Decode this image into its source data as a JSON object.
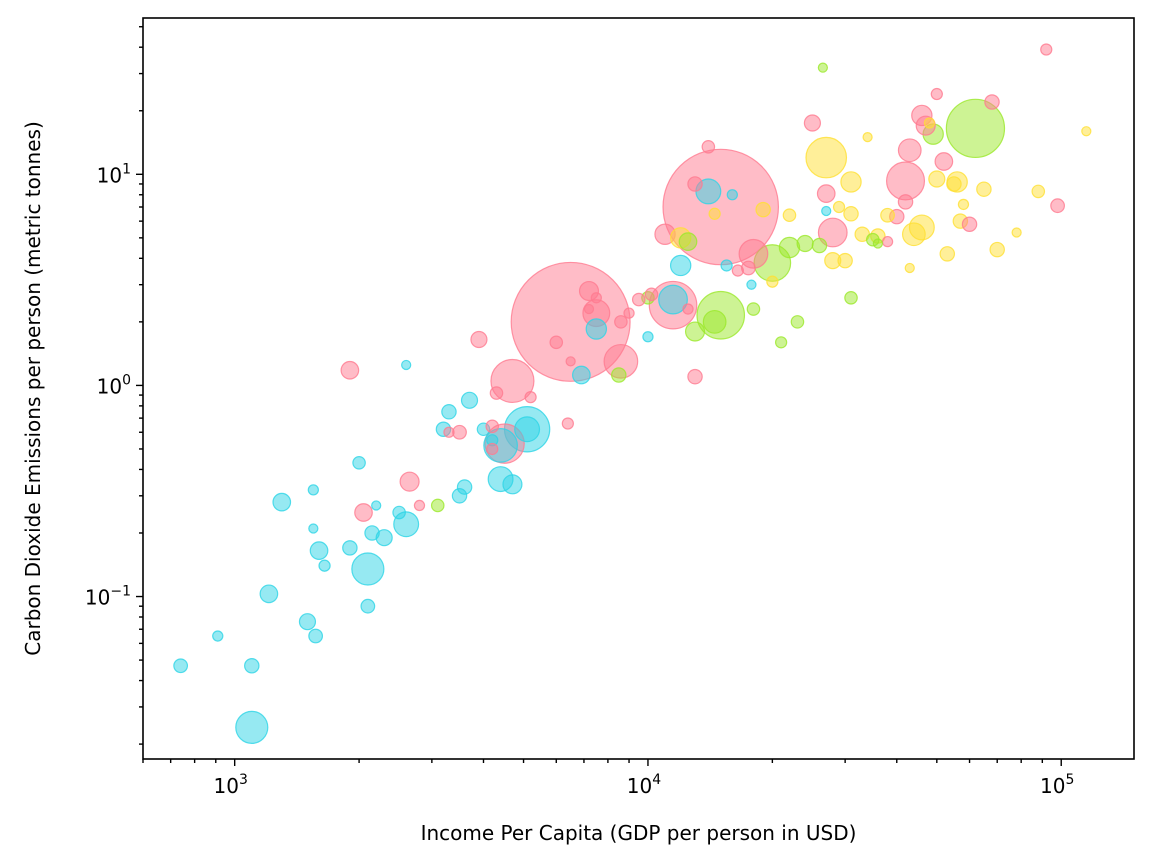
{
  "chart_data": {
    "type": "scatter",
    "title": "",
    "xlabel": "Income Per Capita (GDP per person in USD)",
    "ylabel": "Carbon Dioxide Emissions per person (metric tonnes)",
    "xscale": "log",
    "yscale": "log",
    "xlim": [
      600,
      150000
    ],
    "ylim": [
      0.017,
      55
    ],
    "grid": false,
    "legend": "none",
    "x_ticks": [
      {
        "value": 1000,
        "base": "10",
        "exp": "3"
      },
      {
        "value": 10000,
        "base": "10",
        "exp": "4"
      },
      {
        "value": 100000,
        "base": "10",
        "exp": "5"
      }
    ],
    "y_ticks": [
      {
        "value": 0.1,
        "base": "10",
        "exp": "−1"
      },
      {
        "value": 1,
        "base": "10",
        "exp": "0"
      },
      {
        "value": 10,
        "base": "10",
        "exp": "1"
      }
    ],
    "groups": [
      {
        "color": "#2dd4e6"
      },
      {
        "color": "#ff7a90"
      },
      {
        "color": "#9be82a"
      },
      {
        "color": "#ffe033"
      }
    ],
    "points": [
      [
        6500,
        2.0,
        1380,
        1
      ],
      [
        15000,
        7.0,
        1300,
        1
      ],
      [
        5100,
        0.62,
        200,
        0
      ],
      [
        4700,
        1.05,
        180,
        1
      ],
      [
        62000,
        16.5,
        330,
        2
      ],
      [
        15000,
        2.15,
        220,
        2
      ],
      [
        11500,
        2.4,
        220,
        1
      ],
      [
        8600,
        1.3,
        110,
        1
      ],
      [
        4500,
        0.53,
        150,
        1
      ],
      [
        4400,
        0.52,
        110,
        0
      ],
      [
        27000,
        12.0,
        160,
        3
      ],
      [
        42000,
        9.3,
        140,
        1
      ],
      [
        20000,
        3.8,
        130,
        2
      ],
      [
        18000,
        4.2,
        80,
        1
      ],
      [
        28000,
        5.3,
        80,
        1
      ],
      [
        11500,
        2.55,
        80,
        0
      ],
      [
        2100,
        0.135,
        100,
        0
      ],
      [
        1100,
        0.024,
        100,
        0
      ],
      [
        14000,
        8.3,
        60,
        0
      ],
      [
        4400,
        0.36,
        60,
        0
      ],
      [
        7500,
        2.2,
        70,
        1
      ],
      [
        2600,
        0.22,
        60,
        0
      ],
      [
        5100,
        0.62,
        60,
        0
      ],
      [
        46000,
        5.6,
        60,
        3
      ],
      [
        43000,
        13.0,
        50,
        1
      ],
      [
        46000,
        19.0,
        40,
        1
      ],
      [
        44000,
        5.2,
        50,
        3
      ],
      [
        12000,
        3.7,
        40,
        0
      ],
      [
        14500,
        2.0,
        50,
        2
      ],
      [
        47000,
        17.0,
        35,
        1
      ],
      [
        22000,
        4.5,
        40,
        2
      ],
      [
        13000,
        1.8,
        35,
        2
      ],
      [
        7500,
        1.85,
        40,
        0
      ],
      [
        31000,
        9.2,
        40,
        3
      ],
      [
        11000,
        5.2,
        40,
        1
      ],
      [
        56000,
        9.2,
        40,
        3
      ],
      [
        27000,
        8.1,
        30,
        1
      ],
      [
        12000,
        5.0,
        40,
        3
      ],
      [
        4700,
        0.34,
        35,
        0
      ],
      [
        2650,
        0.35,
        35,
        1
      ],
      [
        1300,
        0.28,
        30,
        0
      ],
      [
        1600,
        0.165,
        30,
        0
      ],
      [
        1210,
        0.103,
        30,
        0
      ],
      [
        49000,
        15.5,
        40,
        2
      ],
      [
        52000,
        11.5,
        30,
        1
      ],
      [
        7200,
        2.8,
        35,
        1
      ],
      [
        6900,
        1.12,
        30,
        0
      ],
      [
        12500,
        4.8,
        30,
        2
      ],
      [
        1900,
        1.18,
        30,
        1
      ],
      [
        3700,
        0.85,
        25,
        0
      ],
      [
        3900,
        1.65,
        25,
        1
      ],
      [
        2050,
        0.25,
        30,
        1
      ],
      [
        2300,
        0.19,
        25,
        0
      ],
      [
        1500,
        0.076,
        25,
        0
      ],
      [
        2150,
        0.2,
        20,
        0
      ],
      [
        1900,
        0.17,
        20,
        0
      ],
      [
        1100,
        0.047,
        20,
        0
      ],
      [
        740,
        0.047,
        18,
        0
      ],
      [
        2100,
        0.09,
        18,
        0
      ],
      [
        3300,
        0.75,
        20,
        0
      ],
      [
        3200,
        0.62,
        20,
        0
      ],
      [
        3500,
        0.3,
        20,
        0
      ],
      [
        3600,
        0.33,
        20,
        0
      ],
      [
        1570,
        0.065,
        18,
        0
      ],
      [
        2000,
        0.43,
        15,
        0
      ],
      [
        2500,
        0.25,
        15,
        0
      ],
      [
        24000,
        4.7,
        25,
        2
      ],
      [
        23000,
        2.0,
        15,
        2
      ],
      [
        25000,
        17.5,
        25,
        1
      ],
      [
        26000,
        4.6,
        20,
        2
      ],
      [
        28000,
        3.9,
        25,
        3
      ],
      [
        30000,
        3.9,
        20,
        3
      ],
      [
        31000,
        6.5,
        20,
        3
      ],
      [
        33000,
        5.2,
        20,
        3
      ],
      [
        36000,
        5.1,
        20,
        3
      ],
      [
        38000,
        6.4,
        18,
        3
      ],
      [
        40000,
        6.3,
        20,
        1
      ],
      [
        42000,
        7.4,
        20,
        1
      ],
      [
        50000,
        9.5,
        25,
        3
      ],
      [
        55000,
        9.0,
        20,
        3
      ],
      [
        57000,
        6.0,
        20,
        3
      ],
      [
        60000,
        5.8,
        20,
        1
      ],
      [
        65000,
        8.5,
        20,
        3
      ],
      [
        68000,
        22.0,
        20,
        1
      ],
      [
        70000,
        4.4,
        20,
        3
      ],
      [
        53000,
        4.2,
        20,
        3
      ],
      [
        98000,
        7.1,
        18,
        1
      ],
      [
        88000,
        8.3,
        15,
        3
      ],
      [
        92000,
        39.0,
        12,
        1
      ],
      [
        115000,
        16.0,
        8,
        3
      ],
      [
        26500,
        32.0,
        8,
        2
      ],
      [
        50000,
        24.0,
        12,
        1
      ],
      [
        35000,
        4.9,
        15,
        2
      ],
      [
        14000,
        13.5,
        15,
        1
      ],
      [
        13000,
        9.0,
        20,
        1
      ],
      [
        10000,
        2.6,
        15,
        2
      ],
      [
        10200,
        2.7,
        15,
        1
      ],
      [
        9500,
        2.55,
        15,
        1
      ],
      [
        8600,
        2.0,
        15,
        1
      ],
      [
        8500,
        1.12,
        20,
        2
      ],
      [
        13000,
        1.1,
        20,
        1
      ],
      [
        6000,
        1.6,
        15,
        1
      ],
      [
        6500,
        1.3,
        8,
        1
      ],
      [
        7200,
        2.3,
        8,
        1
      ],
      [
        4000,
        0.62,
        15,
        0
      ],
      [
        4200,
        0.55,
        12,
        0
      ],
      [
        3500,
        0.6,
        18,
        1
      ],
      [
        4200,
        0.64,
        15,
        1
      ],
      [
        5200,
        0.88,
        12,
        1
      ],
      [
        4300,
        0.92,
        15,
        1
      ],
      [
        3100,
        0.27,
        15,
        2
      ],
      [
        4200,
        0.5,
        12,
        1
      ],
      [
        3300,
        0.6,
        10,
        1
      ],
      [
        2600,
        1.25,
        8,
        0
      ],
      [
        2800,
        0.27,
        10,
        1
      ],
      [
        1550,
        0.21,
        8,
        0
      ],
      [
        1550,
        0.32,
        10,
        0
      ],
      [
        1650,
        0.14,
        12,
        0
      ],
      [
        910,
        0.065,
        10,
        0
      ],
      [
        2200,
        0.27,
        8,
        0
      ],
      [
        6400,
        0.66,
        12,
        1
      ],
      [
        17500,
        3.6,
        18,
        1
      ],
      [
        16500,
        3.5,
        12,
        1
      ],
      [
        19000,
        6.8,
        20,
        3
      ],
      [
        20000,
        3.1,
        12,
        3
      ],
      [
        21000,
        1.6,
        12,
        2
      ],
      [
        22000,
        6.4,
        15,
        3
      ],
      [
        18000,
        2.3,
        15,
        2
      ],
      [
        16000,
        8.0,
        10,
        0
      ],
      [
        15500,
        3.7,
        12,
        0
      ],
      [
        17800,
        3.0,
        8,
        0
      ],
      [
        14500,
        6.5,
        12,
        3
      ],
      [
        29000,
        7.0,
        12,
        3
      ],
      [
        31000,
        2.6,
        15,
        2
      ],
      [
        27000,
        6.7,
        8,
        0
      ],
      [
        34000,
        15.0,
        8,
        3
      ],
      [
        38000,
        4.8,
        10,
        1
      ],
      [
        43000,
        3.6,
        8,
        3
      ],
      [
        48000,
        17.5,
        10,
        3
      ],
      [
        58000,
        7.2,
        10,
        3
      ],
      [
        78000,
        5.3,
        8,
        3
      ],
      [
        36000,
        4.7,
        8,
        2
      ],
      [
        9000,
        2.2,
        10,
        1
      ],
      [
        7500,
        2.6,
        10,
        1
      ],
      [
        10000,
        1.7,
        10,
        0
      ],
      [
        12500,
        2.3,
        10,
        1
      ]
    ]
  }
}
